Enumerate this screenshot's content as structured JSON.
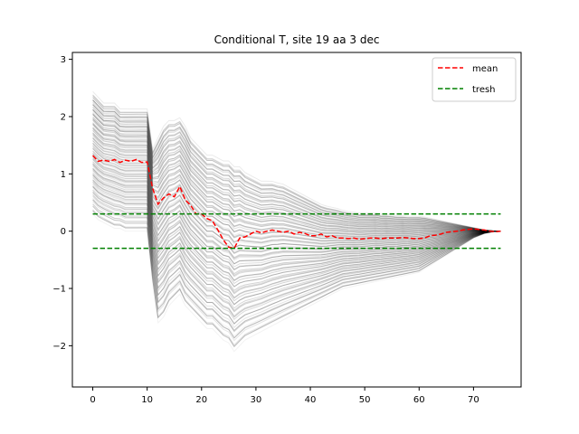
{
  "chart_data": {
    "type": "line",
    "title": "Conditional T, site 19 aa 3 dec",
    "xlabel": "",
    "ylabel": "",
    "xlim": [
      -3.75,
      78.75
    ],
    "ylim": [
      -2.72,
      3.12
    ],
    "xticks": [
      0,
      10,
      20,
      30,
      40,
      50,
      60,
      70
    ],
    "yticks": [
      -2,
      -1,
      0,
      1,
      2,
      3
    ],
    "legend": {
      "position": "top-right",
      "entries": [
        "mean",
        "tresh"
      ]
    },
    "series": [
      {
        "name": "mean",
        "color": "#ff0000",
        "style": "dashed",
        "x": [
          0,
          1,
          2,
          3,
          4,
          5,
          6,
          7,
          8,
          9,
          10,
          11,
          12,
          13,
          14,
          15,
          16,
          17,
          18,
          19,
          20,
          21,
          22,
          23,
          24,
          25,
          26,
          27,
          28,
          29,
          30,
          31,
          32,
          33,
          34,
          35,
          36,
          37,
          38,
          39,
          40,
          41,
          42,
          43,
          44,
          45,
          46,
          47,
          48,
          49,
          50,
          51,
          52,
          53,
          54,
          55,
          56,
          57,
          58,
          59,
          60,
          61,
          62,
          63,
          64,
          65,
          66,
          67,
          68,
          69,
          70,
          71,
          72,
          73,
          74,
          75
        ],
        "values": [
          1.32,
          1.22,
          1.24,
          1.22,
          1.25,
          1.2,
          1.24,
          1.22,
          1.25,
          1.2,
          1.21,
          0.75,
          0.47,
          0.58,
          0.65,
          0.6,
          0.78,
          0.55,
          0.45,
          0.3,
          0.3,
          0.22,
          0.18,
          0.02,
          -0.15,
          -0.28,
          -0.3,
          -0.12,
          -0.1,
          -0.05,
          0.0,
          -0.03,
          0.0,
          0.02,
          0.0,
          -0.02,
          0.0,
          -0.05,
          -0.02,
          -0.04,
          -0.08,
          -0.08,
          -0.05,
          -0.1,
          -0.08,
          -0.12,
          -0.12,
          -0.13,
          -0.12,
          -0.14,
          -0.13,
          -0.12,
          -0.12,
          -0.13,
          -0.12,
          -0.12,
          -0.12,
          -0.11,
          -0.12,
          -0.13,
          -0.13,
          -0.12,
          -0.08,
          -0.07,
          -0.05,
          -0.02,
          -0.01,
          0.0,
          0.02,
          0.03,
          0.04,
          0.03,
          0.02,
          0.0,
          -0.01,
          0.0
        ]
      },
      {
        "name": "tresh",
        "color": "#008000",
        "style": "dashed",
        "x": [
          0,
          75
        ],
        "values": [
          0.3,
          0.3
        ]
      },
      {
        "name": "tresh",
        "color": "#008000",
        "style": "dashed",
        "x": [
          0,
          75
        ],
        "values": [
          -0.3,
          -0.3
        ]
      }
    ],
    "background_traces": {
      "description_count": 120,
      "color": "#000000",
      "style": "solid",
      "upper_envelope": [
        2.4,
        2.3,
        2.2,
        2.2,
        2.2,
        2.1,
        2.1,
        2.1,
        2.1,
        2.1,
        2.1,
        1.4,
        1.6,
        1.8,
        1.9,
        1.9,
        1.95,
        1.8,
        1.6,
        1.5,
        1.4,
        1.3,
        1.3,
        1.25,
        1.2,
        1.2,
        1.1,
        1.1,
        1.0,
        0.95,
        0.9,
        0.85,
        0.85,
        0.85,
        0.82,
        0.8,
        0.75,
        0.7,
        0.65,
        0.6,
        0.55,
        0.5,
        0.45,
        0.42,
        0.4,
        0.38,
        0.35,
        0.33,
        0.32,
        0.3,
        0.3,
        0.3,
        0.3,
        0.28,
        0.28,
        0.27,
        0.26,
        0.26,
        0.25,
        0.25,
        0.25,
        0.24,
        0.22,
        0.2,
        0.18,
        0.16,
        0.14,
        0.12,
        0.1,
        0.08,
        0.06,
        0.04,
        0.02,
        0.01,
        0.0,
        0.0
      ],
      "lower_envelope": [
        0.3,
        0.2,
        0.15,
        0.1,
        0.05,
        0.05,
        0.0,
        0.0,
        0.0,
        0.0,
        0.0,
        -0.9,
        -1.6,
        -1.5,
        -1.3,
        -1.2,
        -1.1,
        -1.3,
        -1.4,
        -1.5,
        -1.6,
        -1.7,
        -1.7,
        -1.8,
        -1.9,
        -1.95,
        -2.1,
        -2.0,
        -1.9,
        -1.85,
        -1.8,
        -1.75,
        -1.7,
        -1.65,
        -1.6,
        -1.55,
        -1.5,
        -1.45,
        -1.4,
        -1.35,
        -1.3,
        -1.25,
        -1.2,
        -1.15,
        -1.1,
        -1.05,
        -1.0,
        -0.98,
        -0.96,
        -0.94,
        -0.92,
        -0.9,
        -0.88,
        -0.86,
        -0.84,
        -0.82,
        -0.8,
        -0.78,
        -0.76,
        -0.74,
        -0.72,
        -0.66,
        -0.6,
        -0.54,
        -0.48,
        -0.42,
        -0.36,
        -0.3,
        -0.24,
        -0.18,
        -0.12,
        -0.08,
        -0.04,
        -0.02,
        0.0,
        0.0
      ]
    }
  }
}
